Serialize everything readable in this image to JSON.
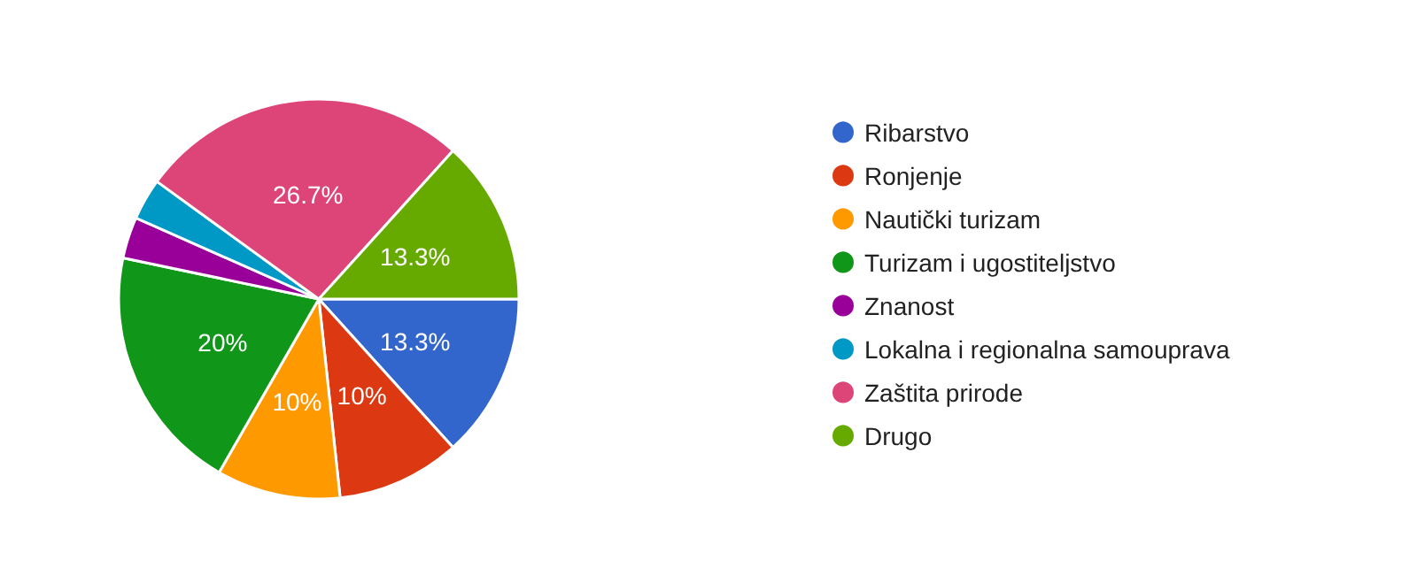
{
  "chart_data": {
    "type": "pie",
    "categories": [
      "Ribarstvo",
      "Ronjenje",
      "Nautički turizam",
      "Turizam i ugostiteljstvo",
      "Znanost",
      "Lokalna i regionalna samouprava",
      "Zaštita prirode",
      "Drugo"
    ],
    "values": [
      13.3,
      10,
      10,
      20,
      3.35,
      3.35,
      26.7,
      13.3
    ],
    "colors": [
      "#3366cc",
      "#dc3912",
      "#ff9900",
      "#109618",
      "#990099",
      "#0099c6",
      "#dd4477",
      "#66aa00"
    ],
    "value_labels": [
      "13.3%",
      "10%",
      "10%",
      "20%",
      null,
      null,
      "26.7%",
      "13.3%"
    ],
    "legend": "right"
  }
}
